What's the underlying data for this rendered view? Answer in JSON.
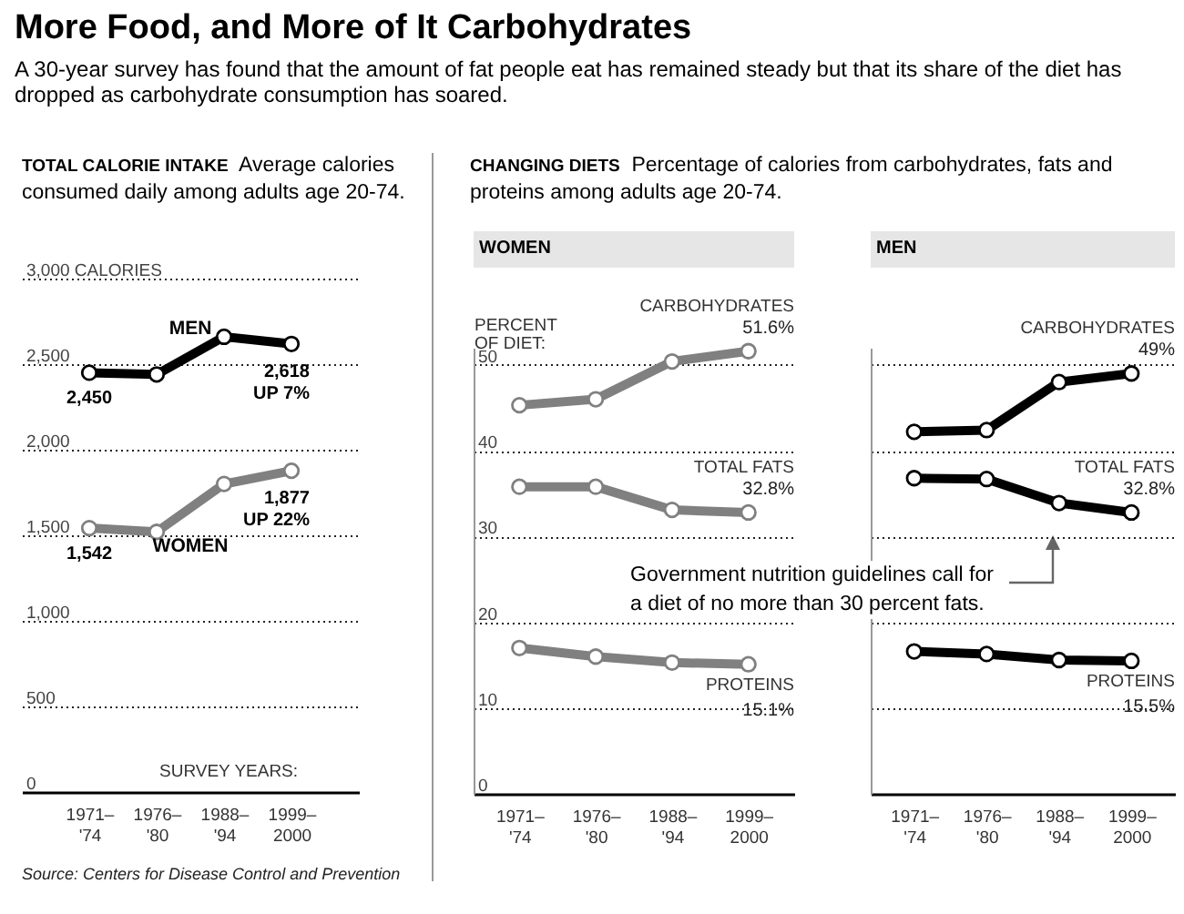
{
  "chart_data": [
    {
      "type": "other",
      "title": "More Food, and More of It Carbohydrates",
      "subtitle": "A 30-year survey has found that the amount of fat people eat has remained steady but that its share of the diet has dropped as carbohydrate consumption has soared."
    },
    {
      "type": "line",
      "title": "TOTAL CALORIE INTAKE",
      "subtitle": "Average calories consumed daily among adults age 20-74.",
      "xlabel": "SURVEY YEARS:",
      "categories": [
        "1971–'74",
        "1976–'80",
        "1988–'94",
        "1999–2000"
      ],
      "series": [
        {
          "name": "MEN",
          "color": "#000000",
          "values": [
            2450,
            2440,
            2660,
            2618
          ],
          "value_labels": [
            "2,450",
            null,
            null,
            "2,618\nUP 7%"
          ]
        },
        {
          "name": "WOMEN",
          "color": "#808080",
          "values": [
            1542,
            1520,
            1800,
            1877
          ],
          "value_labels": [
            "1,542",
            null,
            null,
            "1,877\nUP 22%"
          ]
        }
      ],
      "ylim": [
        0,
        3000
      ],
      "yticks": [
        0,
        500,
        {
          "value": 1000,
          "label": "1,000"
        },
        {
          "value": 1500,
          "label": "1,500"
        },
        {
          "value": 2000,
          "label": "2,000"
        },
        {
          "value": 2500,
          "label": "2,500"
        },
        {
          "value": 3000,
          "label": "3,000 CALORIES"
        }
      ],
      "grid": "y",
      "marker": "circle",
      "annotations": [
        "Source: Centers for Disease Control and Prevention"
      ]
    },
    {
      "type": "other",
      "title": "CHANGING DIETS",
      "subtitle": "Percentage of calories from carbohydrates, fats and proteins among adults age 20-74."
    },
    {
      "type": "line",
      "title": "WOMEN",
      "ylabel": "PERCENT OF DIET:",
      "categories": [
        "1971–'74",
        "1976–'80",
        "1988–'94",
        "1999–2000"
      ],
      "series": [
        {
          "name": "CARBOHYDRATES",
          "color": "#808080",
          "values": [
            45.3,
            46.0,
            50.4,
            51.6
          ],
          "value_labels": [
            null,
            null,
            null,
            "51.6%"
          ]
        },
        {
          "name": "TOTAL FATS",
          "color": "#808080",
          "values": [
            35.8,
            35.8,
            33.1,
            32.8
          ],
          "value_labels": [
            null,
            null,
            null,
            "32.8%"
          ]
        },
        {
          "name": "PROTEINS",
          "color": "#808080",
          "values": [
            17.0,
            16.0,
            15.3,
            15.1
          ],
          "value_labels": [
            null,
            null,
            null,
            "15.1%"
          ]
        }
      ],
      "ylim": [
        0,
        52
      ],
      "yticks": [
        0,
        10,
        20,
        30,
        40,
        50
      ],
      "grid": "y",
      "marker": "circle"
    },
    {
      "type": "line",
      "title": "MEN",
      "categories": [
        "1971–'74",
        "1976–'80",
        "1988–'94",
        "1999–2000"
      ],
      "series": [
        {
          "name": "CARBOHYDRATES",
          "color": "#000000",
          "values": [
            42.2,
            42.4,
            48.0,
            49
          ],
          "value_labels": [
            null,
            null,
            null,
            "49%"
          ]
        },
        {
          "name": "TOTAL FATS",
          "color": "#000000",
          "values": [
            36.8,
            36.7,
            33.9,
            32.8
          ],
          "value_labels": [
            null,
            null,
            null,
            "32.8%"
          ]
        },
        {
          "name": "PROTEINS",
          "color": "#000000",
          "values": [
            16.6,
            16.3,
            15.6,
            15.5
          ],
          "value_labels": [
            null,
            null,
            null,
            "15.5%"
          ]
        }
      ],
      "ylim": [
        0,
        52
      ],
      "yticks": [
        0,
        10,
        20,
        30,
        40,
        50
      ],
      "grid": "y",
      "marker": "circle",
      "tick_labels": "x",
      "annotations": [
        "Government nutrition guidelines call for\na diet of no more than 30 percent fats."
      ]
    }
  ]
}
